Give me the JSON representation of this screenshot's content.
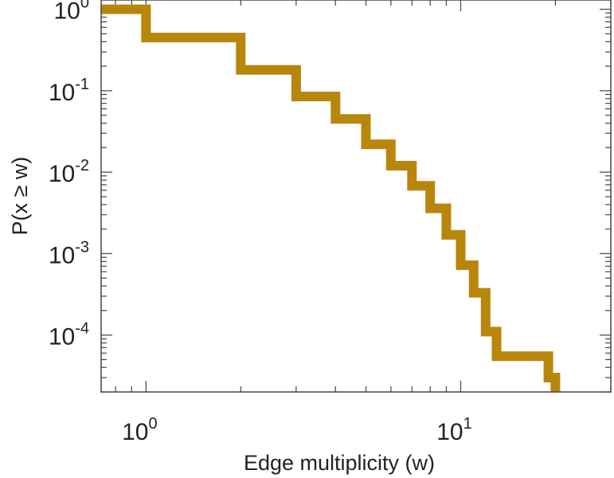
{
  "chart_data": {
    "type": "line",
    "step": true,
    "xscale": "log",
    "yscale": "log",
    "title": "",
    "xlabel": "Edge multiplicity (w)",
    "ylabel": "P(x ≥ w)",
    "xlim": [
      0.72,
      30
    ],
    "ylim": [
      2e-05,
      1.3
    ],
    "grid": false,
    "line_color": "#B8860B",
    "x_ticks": [
      {
        "base": "10",
        "exp": "0",
        "value": 1
      },
      {
        "base": "10",
        "exp": "1",
        "value": 10
      }
    ],
    "y_ticks": [
      {
        "base": "10",
        "exp": "0",
        "value": 1
      },
      {
        "base": "10",
        "exp": "-1",
        "value": 0.1
      },
      {
        "base": "10",
        "exp": "-2",
        "value": 0.01
      },
      {
        "base": "10",
        "exp": "-3",
        "value": 0.001
      },
      {
        "base": "10",
        "exp": "-4",
        "value": 0.0001
      }
    ],
    "series": [
      {
        "x": [
          0.72,
          1,
          1,
          2,
          2,
          3,
          3,
          4,
          4,
          5,
          5,
          6,
          6,
          7,
          7,
          8,
          8,
          9,
          9,
          10,
          10,
          11,
          11,
          12,
          12,
          13,
          13,
          19,
          19,
          20,
          20
        ],
        "y": [
          1,
          1,
          0.45,
          0.45,
          0.18,
          0.18,
          0.085,
          0.085,
          0.045,
          0.045,
          0.022,
          0.022,
          0.012,
          0.012,
          0.0068,
          0.0068,
          0.0036,
          0.0036,
          0.0017,
          0.0017,
          0.00072,
          0.00072,
          0.00033,
          0.00033,
          0.00011,
          0.00011,
          5.5e-05,
          5.5e-05,
          3e-05,
          3e-05,
          2e-05
        ]
      }
    ]
  }
}
